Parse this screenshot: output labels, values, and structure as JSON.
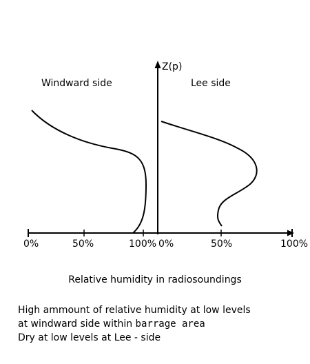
{
  "diagram": {
    "axis_label": "Z(p)",
    "left_title": "Windward side",
    "right_title": "Lee side",
    "left_ticks": [
      "0%",
      "50%",
      "100%"
    ],
    "right_ticks": [
      "0%",
      "50%",
      "100%"
    ],
    "caption": "Relative humidity in radiosoundings"
  },
  "notes": {
    "line1": "High ammount of relative humidity at low levels",
    "line2_prefix": "at windward side within ",
    "line2_mono": "barrage area",
    "line3": "Dry at low levels at Lee - side"
  },
  "colors": {
    "ink": "#000000",
    "background": "#ffffff"
  }
}
